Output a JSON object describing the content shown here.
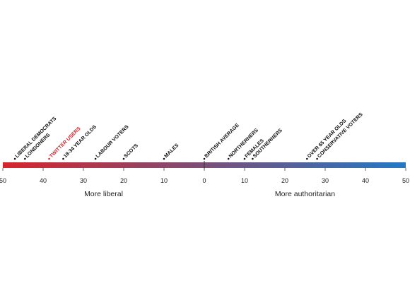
{
  "chart_data": {
    "type": "scatter",
    "x_axis": {
      "range": [
        -50,
        50
      ],
      "ticks": [
        -50,
        -40,
        -30,
        -20,
        -10,
        0,
        10,
        20,
        30,
        40,
        50
      ],
      "tick_labels": [
        "50",
        "40",
        "30",
        "20",
        "10",
        "0",
        "10",
        "20",
        "30",
        "40",
        "50"
      ],
      "left_caption": "More liberal",
      "right_caption": "More authoritarian"
    },
    "gradient": {
      "left_color": "#d7242b",
      "right_color": "#2179c6"
    },
    "highlight_color": "#d7242b",
    "default_label_color": "#111111",
    "points": [
      {
        "label": "LIBERAL DEMOCRATS",
        "x": -47,
        "highlight": false
      },
      {
        "label": "LONDONERS",
        "x": -44.5,
        "highlight": false
      },
      {
        "label": "TWITTER USERS",
        "x": -38.5,
        "highlight": true
      },
      {
        "label": "18-34 YEAR OLDS",
        "x": -35,
        "highlight": false
      },
      {
        "label": "LABOUR VOTERS",
        "x": -27,
        "highlight": false
      },
      {
        "label": "SCOTS",
        "x": -20,
        "highlight": false
      },
      {
        "label": "MALES",
        "x": -10,
        "highlight": false
      },
      {
        "label": "BRITISH AVERAGE",
        "x": 0,
        "highlight": false
      },
      {
        "label": "NORTHERNERS",
        "x": 6,
        "highlight": false
      },
      {
        "label": "FEMALES",
        "x": 10,
        "highlight": false
      },
      {
        "label": "SOUTHERNERS",
        "x": 12,
        "highlight": false
      },
      {
        "label": "OVER 65 YEAR OLDS",
        "x": 25.5,
        "highlight": false
      },
      {
        "label": "CONSERVATIVE VOTERS",
        "x": 28,
        "highlight": false
      }
    ]
  }
}
